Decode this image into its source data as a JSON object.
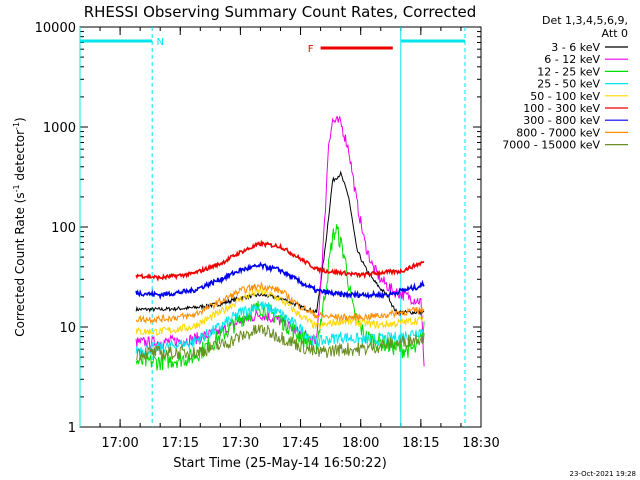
{
  "chart_data": {
    "type": "line",
    "title": "RHESSI Observing Summary Count Rates, Corrected",
    "xlabel": "Start Time (25-May-14 16:50:22)",
    "ylabel": "Corrected Count Rate (s",
    "ylabel_sup1": "-1",
    "ylabel_mid": " detector",
    "ylabel_sup2": "-1",
    "ylabel_end": ")",
    "x_axis": {
      "range": [
        "16:50",
        "18:30"
      ],
      "ticks": [
        "17:00",
        "17:15",
        "17:30",
        "17:45",
        "18:00",
        "18:15",
        "18:30"
      ]
    },
    "y_axis": {
      "scale": "log",
      "range": [
        1,
        10000
      ],
      "ticks": [
        "1",
        "10",
        "100",
        "1000",
        "10000"
      ]
    },
    "legend_header": [
      "Det 1,3,4,5,6,9,",
      "Att 0"
    ],
    "legend_placement": "right",
    "timestamp": "23-Oct-2021 19:28",
    "flags": [
      {
        "label": "N",
        "color": "#00e5ee",
        "intervals": [
          [
            "16:50",
            "17:08"
          ],
          [
            "18:10",
            "18:26"
          ]
        ]
      },
      {
        "label": "F",
        "color": "#ee0000",
        "intervals": [
          [
            "17:50",
            "18:08"
          ]
        ]
      }
    ],
    "vlines_solid": [
      "16:50",
      "18:10"
    ],
    "vlines_dashed": [
      "17:08",
      "18:26"
    ],
    "series": [
      {
        "name": "3 - 6 keV",
        "color": "#000000",
        "points": [
          [
            "17:04",
            15
          ],
          [
            "17:10",
            15
          ],
          [
            "17:18",
            15.5
          ],
          [
            "17:25",
            17
          ],
          [
            "17:30",
            19.5
          ],
          [
            "17:35",
            21
          ],
          [
            "17:40",
            19.5
          ],
          [
            "17:45",
            16
          ],
          [
            "17:49",
            14
          ],
          [
            "17:51",
            55
          ],
          [
            "17:53",
            290
          ],
          [
            "17:55",
            340
          ],
          [
            "17:57",
            200
          ],
          [
            "17:59",
            60
          ],
          [
            "18:01",
            40
          ],
          [
            "18:03",
            30
          ],
          [
            "18:05",
            24
          ],
          [
            "18:07",
            20
          ],
          [
            "18:08",
            16
          ],
          [
            "18:09",
            14
          ],
          [
            "18:12",
            14
          ],
          [
            "18:16",
            14
          ]
        ]
      },
      {
        "name": "6 - 12 keV",
        "color": "#ee00ee",
        "points": [
          [
            "17:04",
            7
          ],
          [
            "17:10",
            7
          ],
          [
            "17:18",
            7.5
          ],
          [
            "17:25",
            9
          ],
          [
            "17:30",
            11.5
          ],
          [
            "17:35",
            13.5
          ],
          [
            "17:40",
            11.5
          ],
          [
            "17:45",
            8.5
          ],
          [
            "17:49",
            7
          ],
          [
            "17:51",
            110
          ],
          [
            "17:52",
            700
          ],
          [
            "17:53",
            1150
          ],
          [
            "17:55",
            1100
          ],
          [
            "17:57",
            600
          ],
          [
            "17:59",
            180
          ],
          [
            "18:01",
            70
          ],
          [
            "18:03",
            40
          ],
          [
            "18:05",
            30
          ],
          [
            "18:08",
            23
          ],
          [
            "18:12",
            20
          ],
          [
            "18:15",
            18
          ],
          [
            "18:16",
            3
          ]
        ]
      },
      {
        "name": "12 - 25 keV",
        "color": "#00dd00",
        "points": [
          [
            "17:04",
            4.5
          ],
          [
            "17:10",
            4.5
          ],
          [
            "17:18",
            5
          ],
          [
            "17:25",
            8
          ],
          [
            "17:30",
            12
          ],
          [
            "17:35",
            16
          ],
          [
            "17:40",
            12
          ],
          [
            "17:45",
            8
          ],
          [
            "17:49",
            6.5
          ],
          [
            "17:51",
            20
          ],
          [
            "17:53",
            80
          ],
          [
            "17:54",
            95
          ],
          [
            "17:56",
            50
          ],
          [
            "17:58",
            15
          ],
          [
            "18:01",
            8
          ],
          [
            "18:05",
            7
          ],
          [
            "18:10",
            6
          ],
          [
            "18:14",
            6
          ],
          [
            "18:16",
            10
          ]
        ]
      },
      {
        "name": "25 - 50 keV",
        "color": "#00e5ee",
        "points": [
          [
            "17:04",
            6
          ],
          [
            "17:10",
            6.2
          ],
          [
            "17:18",
            7
          ],
          [
            "17:25",
            10
          ],
          [
            "17:30",
            14
          ],
          [
            "17:35",
            16.5
          ],
          [
            "17:40",
            13.5
          ],
          [
            "17:45",
            9.5
          ],
          [
            "17:49",
            7
          ],
          [
            "17:55",
            8
          ],
          [
            "18:00",
            7.5
          ],
          [
            "18:05",
            7.5
          ],
          [
            "18:10",
            8
          ],
          [
            "18:16",
            9.5
          ]
        ]
      },
      {
        "name": "50 - 100 keV",
        "color": "#ffd700",
        "points": [
          [
            "17:04",
            9
          ],
          [
            "17:10",
            9
          ],
          [
            "17:18",
            10
          ],
          [
            "17:25",
            14
          ],
          [
            "17:30",
            19
          ],
          [
            "17:35",
            23
          ],
          [
            "17:40",
            19
          ],
          [
            "17:45",
            13
          ],
          [
            "17:49",
            10
          ],
          [
            "17:55",
            11.5
          ],
          [
            "18:00",
            11
          ],
          [
            "18:05",
            10.5
          ],
          [
            "18:10",
            11
          ],
          [
            "18:16",
            12
          ]
        ]
      },
      {
        "name": "100 - 300 keV",
        "color": "#ee0000",
        "points": [
          [
            "17:04",
            33
          ],
          [
            "17:10",
            31
          ],
          [
            "17:18",
            34
          ],
          [
            "17:25",
            43
          ],
          [
            "17:30",
            56
          ],
          [
            "17:35",
            68
          ],
          [
            "17:40",
            64
          ],
          [
            "17:45",
            48
          ],
          [
            "17:49",
            38
          ],
          [
            "17:52",
            36
          ],
          [
            "17:55",
            35
          ],
          [
            "18:00",
            33
          ],
          [
            "18:05",
            35
          ],
          [
            "18:10",
            36
          ],
          [
            "18:14",
            42
          ],
          [
            "18:16",
            45
          ]
        ]
      },
      {
        "name": "300 - 800 keV",
        "color": "#0000ee",
        "points": [
          [
            "17:04",
            22
          ],
          [
            "17:10",
            21
          ],
          [
            "17:18",
            23
          ],
          [
            "17:25",
            30
          ],
          [
            "17:30",
            37
          ],
          [
            "17:35",
            41
          ],
          [
            "17:40",
            37
          ],
          [
            "17:45",
            28
          ],
          [
            "17:49",
            23
          ],
          [
            "17:55",
            21
          ],
          [
            "18:00",
            21
          ],
          [
            "18:07",
            21
          ],
          [
            "18:10",
            23
          ],
          [
            "18:14",
            25
          ],
          [
            "18:16",
            27
          ]
        ]
      },
      {
        "name": "800 - 7000 keV",
        "color": "#ff8c00",
        "points": [
          [
            "17:04",
            12
          ],
          [
            "17:10",
            12
          ],
          [
            "17:18",
            13
          ],
          [
            "17:25",
            18
          ],
          [
            "17:30",
            23
          ],
          [
            "17:35",
            26
          ],
          [
            "17:40",
            23
          ],
          [
            "17:45",
            16
          ],
          [
            "17:49",
            13
          ],
          [
            "17:55",
            12.5
          ],
          [
            "18:00",
            12.5
          ],
          [
            "18:05",
            13
          ],
          [
            "18:10",
            14
          ],
          [
            "18:16",
            15
          ]
        ]
      },
      {
        "name": "7000 - 15000 keV",
        "color": "#6b8e23",
        "points": [
          [
            "17:04",
            5.5
          ],
          [
            "17:10",
            5.5
          ],
          [
            "17:18",
            5.5
          ],
          [
            "17:25",
            6.5
          ],
          [
            "17:30",
            8
          ],
          [
            "17:35",
            9.5
          ],
          [
            "17:40",
            8
          ],
          [
            "17:45",
            6.5
          ],
          [
            "17:49",
            5.5
          ],
          [
            "17:55",
            6
          ],
          [
            "18:00",
            6
          ],
          [
            "18:05",
            6.5
          ],
          [
            "18:10",
            7
          ],
          [
            "18:16",
            8
          ]
        ]
      }
    ]
  }
}
